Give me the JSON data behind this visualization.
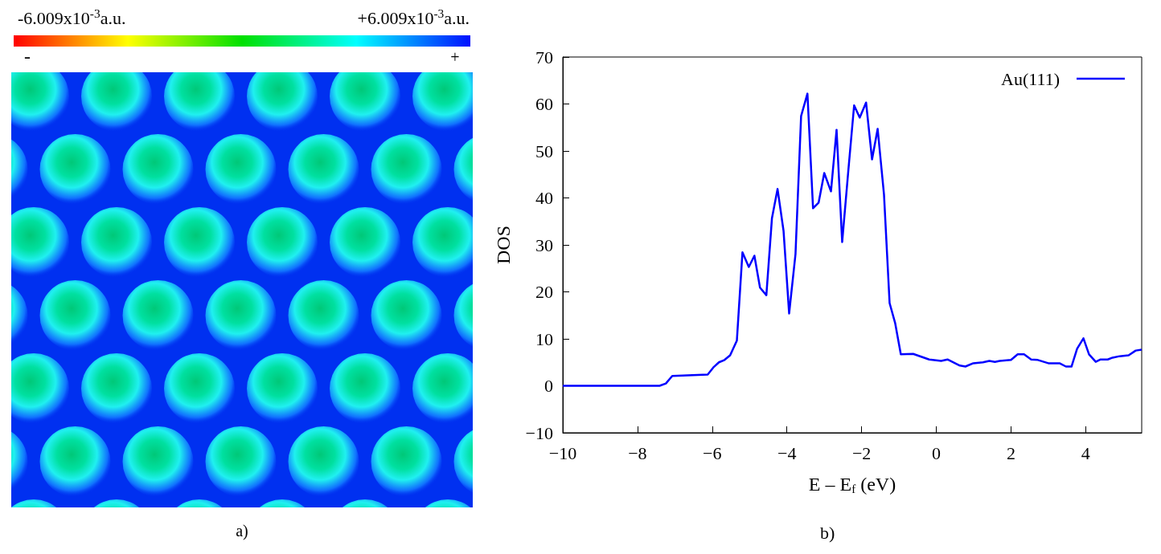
{
  "chart_data": [
    {
      "type": "other",
      "annotations": [
        "-6.009x10$^{-3}$a.u.",
        "+6.009x10$^{-3}$a.u.",
        "-",
        "+",
        "a)"
      ]
    },
    {
      "type": "line",
      "xlabel": "E – E$_{f}$ (eV)",
      "ylabel": "DOS",
      "annotations": [
        "b)"
      ],
      "x": [
        -10,
        -7.41,
        -7.24,
        -7.07,
        -6.12,
        -5.97,
        -5.82,
        -5.67,
        -5.52,
        -5.34,
        -5.19,
        -5.02,
        -4.87,
        -4.72,
        -4.55,
        -4.4,
        -4.25,
        -4.09,
        -3.94,
        -3.77,
        -3.62,
        -3.45,
        -3.3,
        -3.15,
        -3.0,
        -2.82,
        -2.67,
        -2.52,
        -2.35,
        -2.2,
        -2.05,
        -1.88,
        -1.72,
        -1.57,
        -1.4,
        -1.25,
        -1.1,
        -0.95,
        -0.62,
        -0.19,
        0.13,
        0.3,
        0.63,
        0.78,
        0.99,
        1.25,
        1.42,
        1.57,
        1.7,
        2.0,
        2.18,
        2.35,
        2.54,
        2.72,
        3.0,
        3.3,
        3.47,
        3.62,
        3.77,
        3.94,
        4.09,
        4.27,
        4.4,
        4.59,
        4.72,
        4.91,
        5.15,
        5.34,
        5.5
      ],
      "series": [
        {
          "name": "Au(111)",
          "color": "#0000ff",
          "values": [
            0,
            0,
            0.5,
            2.1,
            2.4,
            3.9,
            5.0,
            5.5,
            6.5,
            9.6,
            28.4,
            25.3,
            27.7,
            20.9,
            19.3,
            35.7,
            41.9,
            33.0,
            15.4,
            28.0,
            57.4,
            62.2,
            37.8,
            39.0,
            45.3,
            41.4,
            54.5,
            30.6,
            46.3,
            59.7,
            57.1,
            60.3,
            48.2,
            54.7,
            40.7,
            17.6,
            13.3,
            6.7,
            6.8,
            5.6,
            5.3,
            5.6,
            4.3,
            4.1,
            4.8,
            5.0,
            5.3,
            5.1,
            5.3,
            5.5,
            6.7,
            6.7,
            5.6,
            5.5,
            4.8,
            4.8,
            4.1,
            4.1,
            7.9,
            10.1,
            6.7,
            5.1,
            5.6,
            5.6,
            6.0,
            6.3,
            6.5,
            7.5,
            7.7
          ]
        }
      ],
      "xlim": [
        -10,
        5.5
      ],
      "xticks": [
        -10,
        -8,
        -6,
        -4,
        -2,
        0,
        2,
        4
      ],
      "ylim": [
        -10,
        70
      ],
      "yticks": [
        -10,
        0,
        10,
        20,
        30,
        40,
        50,
        60,
        70
      ],
      "grid": false,
      "legend": "top right",
      "marker": "none",
      "line_style": "solid"
    }
  ]
}
